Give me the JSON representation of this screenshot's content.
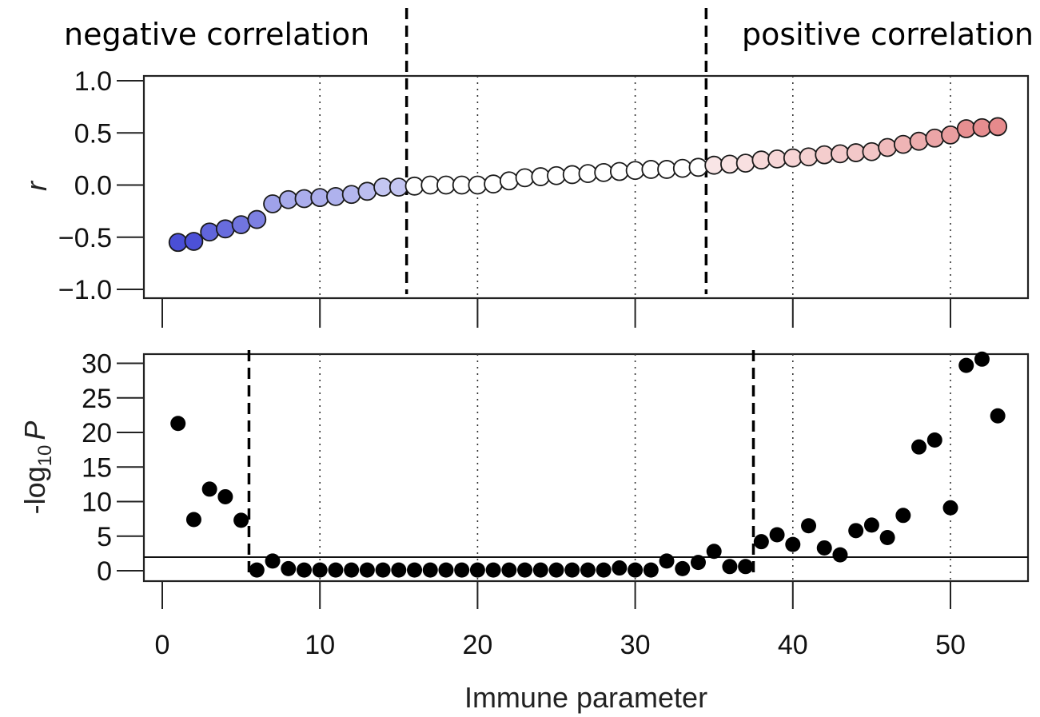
{
  "annotations": {
    "negative": "negative correlation",
    "positive": "positive correlation"
  },
  "chart_data": [
    {
      "type": "scatter",
      "panel": "top",
      "xlabel": "",
      "ylabel": "r",
      "ylim": [
        -1.0,
        1.0
      ],
      "xlim": [
        0,
        54
      ],
      "y_ticks": [
        "1.0",
        "0.5",
        "0.0",
        "−0.5",
        "−1.0"
      ],
      "y_tick_values": [
        1.0,
        0.5,
        0.0,
        -0.5,
        -1.0
      ],
      "x_ticks": [
        0,
        10,
        20,
        30,
        40,
        50
      ],
      "vertical_dotted_gridlines": [
        10,
        20,
        30,
        40,
        50
      ],
      "dashed_dividers": [
        15.5,
        34.5
      ],
      "marker": "circle",
      "negative_color": "#4a4fd6",
      "positive_color": "#e2797b",
      "x": [
        1,
        2,
        3,
        4,
        5,
        6,
        7,
        8,
        9,
        10,
        11,
        12,
        13,
        14,
        15,
        16,
        17,
        18,
        19,
        20,
        21,
        22,
        23,
        24,
        25,
        26,
        27,
        28,
        29,
        30,
        31,
        32,
        33,
        34,
        35,
        36,
        37,
        38,
        39,
        40,
        41,
        42,
        43,
        44,
        45,
        46,
        47,
        48,
        49,
        50,
        51,
        52,
        53
      ],
      "y": [
        -0.55,
        -0.54,
        -0.45,
        -0.42,
        -0.38,
        -0.33,
        -0.18,
        -0.14,
        -0.13,
        -0.12,
        -0.11,
        -0.09,
        -0.06,
        -0.02,
        -0.02,
        -0.01,
        0.0,
        0.0,
        0.0,
        0.0,
        0.01,
        0.04,
        0.07,
        0.08,
        0.09,
        0.1,
        0.11,
        0.12,
        0.13,
        0.14,
        0.15,
        0.15,
        0.16,
        0.17,
        0.19,
        0.2,
        0.21,
        0.24,
        0.25,
        0.26,
        0.27,
        0.29,
        0.3,
        0.31,
        0.32,
        0.36,
        0.39,
        0.42,
        0.45,
        0.48,
        0.54,
        0.55,
        0.56
      ]
    },
    {
      "type": "scatter",
      "panel": "bottom",
      "xlabel": "Immune parameter",
      "ylabel_main": "-log",
      "ylabel_sub": "10",
      "ylabel_var": "P",
      "ylim": [
        -1.5,
        31.5
      ],
      "xlim": [
        0,
        54
      ],
      "y_ticks": [
        "30",
        "25",
        "20",
        "15",
        "10",
        "5",
        "0"
      ],
      "y_tick_values": [
        30,
        25,
        20,
        15,
        10,
        5,
        0
      ],
      "x_ticks": [
        "0",
        "10",
        "20",
        "30",
        "40",
        "50"
      ],
      "x_tick_values": [
        0,
        10,
        20,
        30,
        40,
        50
      ],
      "vertical_dotted_gridlines": [
        10,
        20,
        30,
        40,
        50
      ],
      "dashed_dividers": [
        5.5,
        37.5
      ],
      "threshold_line": 1.96,
      "marker": "filled-circle",
      "x": [
        1,
        2,
        3,
        4,
        5,
        6,
        7,
        8,
        9,
        10,
        11,
        12,
        13,
        14,
        15,
        16,
        17,
        18,
        19,
        20,
        21,
        22,
        23,
        24,
        25,
        26,
        27,
        28,
        29,
        30,
        31,
        32,
        33,
        34,
        35,
        36,
        37,
        38,
        39,
        40,
        41,
        42,
        43,
        44,
        45,
        46,
        47,
        48,
        49,
        50,
        51,
        52,
        53
      ],
      "y": [
        21.3,
        7.4,
        11.8,
        10.7,
        7.3,
        0.1,
        1.4,
        0.3,
        0.1,
        0.1,
        0.1,
        0.1,
        0.1,
        0.1,
        0.1,
        0.1,
        0.1,
        0.1,
        0.1,
        0.1,
        0.1,
        0.1,
        0.1,
        0.1,
        0.1,
        0.1,
        0.1,
        0.1,
        0.4,
        0.1,
        0.1,
        1.4,
        0.3,
        1.2,
        2.8,
        0.6,
        0.6,
        4.2,
        5.2,
        3.8,
        6.5,
        3.3,
        2.3,
        5.8,
        6.6,
        4.8,
        8.0,
        17.9,
        18.9,
        9.1,
        29.7,
        30.6,
        22.4
      ]
    }
  ]
}
